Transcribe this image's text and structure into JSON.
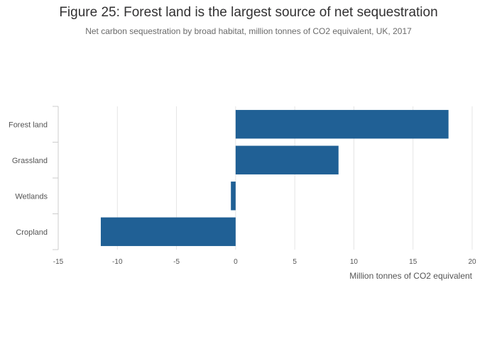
{
  "chart_data": {
    "type": "bar",
    "orientation": "horizontal",
    "title": "Figure 25: Forest land is the largest source of net sequestration",
    "subtitle": "Net carbon sequestration by broad habitat, million tonnes of CO2 equivalent, UK, 2017",
    "categories": [
      "Forest land",
      "Grassland",
      "Wetlands",
      "Cropland"
    ],
    "values": [
      18.0,
      8.7,
      -0.4,
      -11.4
    ],
    "xlabel": "Million tonnes of CO2 equivalent",
    "ylabel": "",
    "xlim": [
      -15,
      20
    ],
    "xticks": [
      -15,
      -10,
      -5,
      0,
      5,
      10,
      15,
      20
    ],
    "xtick_labels": [
      "-15",
      "-10",
      "-5",
      "0",
      "5",
      "10",
      "15",
      "20"
    ],
    "grid": true,
    "bar_color": "#206095"
  }
}
